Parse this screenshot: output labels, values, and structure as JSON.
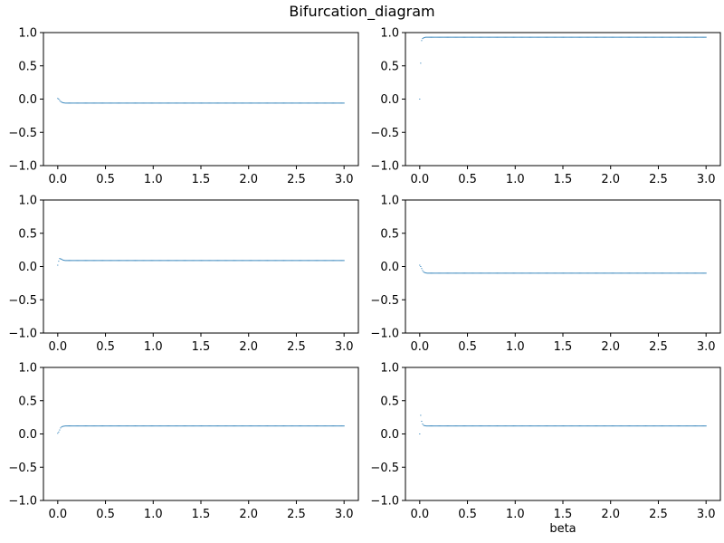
{
  "figure": {
    "suptitle": "Bifurcation_diagram",
    "colors": {
      "series": "#1f77b4",
      "axes": "#000000",
      "background": "#ffffff"
    }
  },
  "chart_data": [
    {
      "type": "scatter",
      "xlabel": "",
      "xlim": [
        -0.15,
        3.15
      ],
      "ylim": [
        -1.0,
        1.0
      ],
      "xticks": [
        0.0,
        0.5,
        1.0,
        1.5,
        2.0,
        2.5,
        3.0
      ],
      "xtick_labels": [
        "0.0",
        "0.5",
        "1.0",
        "1.5",
        "2.0",
        "2.5",
        "3.0"
      ],
      "yticks": [
        -1.0,
        -0.5,
        0.0,
        0.5,
        1.0
      ],
      "ytick_labels": [
        "−1.0",
        "−0.5",
        "0.0",
        "0.5",
        "1.0"
      ],
      "grid": false,
      "x_range": [
        0.0,
        3.0
      ],
      "num_points": 300,
      "steady_value": -0.06,
      "transient": [
        [
          0.0,
          0.01
        ],
        [
          0.01,
          0.0
        ],
        [
          0.02,
          -0.02
        ],
        [
          0.03,
          -0.035
        ],
        [
          0.04,
          -0.045
        ],
        [
          0.05,
          -0.052
        ],
        [
          0.06,
          -0.056
        ],
        [
          0.07,
          -0.058
        ]
      ]
    },
    {
      "type": "scatter",
      "xlabel": "",
      "xlim": [
        -0.15,
        3.15
      ],
      "ylim": [
        -1.0,
        1.0
      ],
      "xticks": [
        0.0,
        0.5,
        1.0,
        1.5,
        2.0,
        2.5,
        3.0
      ],
      "xtick_labels": [
        "0.0",
        "0.5",
        "1.0",
        "1.5",
        "2.0",
        "2.5",
        "3.0"
      ],
      "yticks": [
        -1.0,
        -0.5,
        0.0,
        0.5,
        1.0
      ],
      "ytick_labels": [
        "−1.0",
        "−0.5",
        "0.0",
        "0.5",
        "1.0"
      ],
      "grid": false,
      "x_range": [
        0.0,
        3.0
      ],
      "num_points": 300,
      "steady_value": 0.93,
      "transient": [
        [
          0.0,
          0.0
        ],
        [
          0.01,
          0.54
        ],
        [
          0.02,
          0.88
        ],
        [
          0.03,
          0.91
        ],
        [
          0.04,
          0.92
        ],
        [
          0.05,
          0.925
        ]
      ]
    },
    {
      "type": "scatter",
      "xlabel": "",
      "xlim": [
        -0.15,
        3.15
      ],
      "ylim": [
        -1.0,
        1.0
      ],
      "xticks": [
        0.0,
        0.5,
        1.0,
        1.5,
        2.0,
        2.5,
        3.0
      ],
      "xtick_labels": [
        "0.0",
        "0.5",
        "1.0",
        "1.5",
        "2.0",
        "2.5",
        "3.0"
      ],
      "yticks": [
        -1.0,
        -0.5,
        0.0,
        0.5,
        1.0
      ],
      "ytick_labels": [
        "−1.0",
        "−0.5",
        "0.0",
        "0.5",
        "1.0"
      ],
      "grid": false,
      "x_range": [
        0.0,
        3.0
      ],
      "num_points": 300,
      "steady_value": 0.09,
      "transient": [
        [
          0.0,
          0.02
        ],
        [
          0.01,
          0.08
        ],
        [
          0.02,
          0.12
        ],
        [
          0.03,
          0.115
        ],
        [
          0.04,
          0.11
        ],
        [
          0.05,
          0.1
        ],
        [
          0.06,
          0.095
        ],
        [
          0.07,
          0.092
        ]
      ]
    },
    {
      "type": "scatter",
      "xlabel": "",
      "xlim": [
        -0.15,
        3.15
      ],
      "ylim": [
        -1.0,
        1.0
      ],
      "xticks": [
        0.0,
        0.5,
        1.0,
        1.5,
        2.0,
        2.5,
        3.0
      ],
      "xtick_labels": [
        "0.0",
        "0.5",
        "1.0",
        "1.5",
        "2.0",
        "2.5",
        "3.0"
      ],
      "yticks": [
        -1.0,
        -0.5,
        0.0,
        0.5,
        1.0
      ],
      "ytick_labels": [
        "−1.0",
        "−0.5",
        "0.0",
        "0.5",
        "1.0"
      ],
      "grid": false,
      "x_range": [
        0.0,
        3.0
      ],
      "num_points": 300,
      "steady_value": -0.1,
      "transient": [
        [
          0.0,
          0.02
        ],
        [
          0.01,
          0.0
        ],
        [
          0.02,
          -0.03
        ],
        [
          0.03,
          -0.06
        ],
        [
          0.04,
          -0.08
        ],
        [
          0.05,
          -0.09
        ],
        [
          0.06,
          -0.095
        ],
        [
          0.07,
          -0.098
        ]
      ]
    },
    {
      "type": "scatter",
      "xlabel": "",
      "xlim": [
        -0.15,
        3.15
      ],
      "ylim": [
        -1.0,
        1.0
      ],
      "xticks": [
        0.0,
        0.5,
        1.0,
        1.5,
        2.0,
        2.5,
        3.0
      ],
      "xtick_labels": [
        "0.0",
        "0.5",
        "1.0",
        "1.5",
        "2.0",
        "2.5",
        "3.0"
      ],
      "yticks": [
        -1.0,
        -0.5,
        0.0,
        0.5,
        1.0
      ],
      "ytick_labels": [
        "−1.0",
        "−0.5",
        "0.0",
        "0.5",
        "1.0"
      ],
      "grid": false,
      "x_range": [
        0.0,
        3.0
      ],
      "num_points": 300,
      "steady_value": 0.12,
      "transient": [
        [
          0.0,
          0.01
        ],
        [
          0.01,
          0.03
        ],
        [
          0.02,
          0.06
        ],
        [
          0.03,
          0.09
        ],
        [
          0.04,
          0.105
        ],
        [
          0.05,
          0.112
        ],
        [
          0.06,
          0.116
        ],
        [
          0.07,
          0.118
        ]
      ]
    },
    {
      "type": "scatter",
      "xlabel": "beta",
      "xlim": [
        -0.15,
        3.15
      ],
      "ylim": [
        -1.0,
        1.0
      ],
      "xticks": [
        0.0,
        0.5,
        1.0,
        1.5,
        2.0,
        2.5,
        3.0
      ],
      "xtick_labels": [
        "0.0",
        "0.5",
        "1.0",
        "1.5",
        "2.0",
        "2.5",
        "3.0"
      ],
      "yticks": [
        -1.0,
        -0.5,
        0.0,
        0.5,
        1.0
      ],
      "ytick_labels": [
        "−1.0",
        "−0.5",
        "0.0",
        "0.5",
        "1.0"
      ],
      "grid": false,
      "x_range": [
        0.0,
        3.0
      ],
      "num_points": 300,
      "steady_value": 0.12,
      "transient": [
        [
          0.0,
          0.0
        ],
        [
          0.01,
          0.28
        ],
        [
          0.02,
          0.19
        ],
        [
          0.03,
          0.15
        ],
        [
          0.04,
          0.13
        ],
        [
          0.05,
          0.125
        ],
        [
          0.06,
          0.122
        ]
      ]
    }
  ]
}
